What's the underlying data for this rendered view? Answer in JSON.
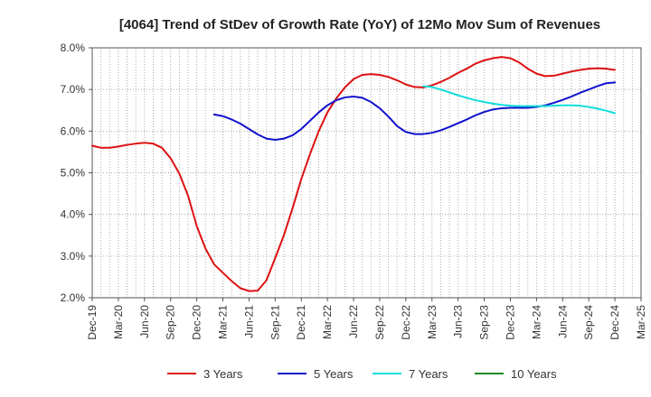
{
  "chart_data": {
    "type": "line",
    "title": "[4064]  Trend of StDev of Growth Rate (YoY) of 12Mo Mov Sum of Revenues",
    "xlabel": "",
    "ylabel": "",
    "ylim": [
      2.0,
      8.0
    ],
    "y_ticks": [
      2.0,
      3.0,
      4.0,
      5.0,
      6.0,
      7.0,
      8.0
    ],
    "y_tick_labels": [
      "2.0%",
      "3.0%",
      "4.0%",
      "5.0%",
      "6.0%",
      "7.0%",
      "8.0%"
    ],
    "x_range_months": [
      0,
      63
    ],
    "x_ticks": [
      0,
      3,
      6,
      9,
      12,
      15,
      18,
      21,
      24,
      27,
      30,
      33,
      36,
      39,
      42,
      45,
      48,
      51,
      54,
      57,
      60,
      63
    ],
    "x_tick_labels": [
      "Dec-19",
      "Mar-20",
      "Jun-20",
      "Sep-20",
      "Dec-20",
      "Mar-21",
      "Jun-21",
      "Sep-21",
      "Dec-21",
      "Mar-22",
      "Jun-22",
      "Sep-22",
      "Dec-22",
      "Mar-23",
      "Jun-23",
      "Sep-23",
      "Dec-23",
      "Mar-24",
      "Jun-24",
      "Sep-24",
      "Dec-24",
      "Mar-25"
    ],
    "grid": true,
    "legend_position": "bottom",
    "series": [
      {
        "name": "3 Years",
        "color": "#dd1111",
        "x": [
          0,
          1,
          2,
          3,
          4,
          5,
          6,
          7,
          8,
          9,
          10,
          11,
          12,
          13,
          14,
          15,
          16,
          17,
          18,
          19,
          20,
          21,
          22,
          23,
          24,
          25,
          26,
          27,
          28,
          29,
          30,
          31,
          32,
          33,
          34,
          35,
          36,
          37,
          38,
          39,
          40,
          41,
          42,
          43,
          44,
          45,
          46,
          47,
          48,
          49,
          50,
          51,
          52,
          53,
          54,
          55,
          56,
          57,
          58,
          59,
          60
        ],
        "values": [
          5.65,
          5.6,
          5.6,
          5.63,
          5.67,
          5.7,
          5.72,
          5.7,
          5.6,
          5.35,
          4.98,
          4.45,
          3.72,
          3.18,
          2.8,
          2.6,
          2.4,
          2.23,
          2.16,
          2.17,
          2.42,
          2.95,
          3.5,
          4.15,
          4.85,
          5.45,
          6.0,
          6.45,
          6.78,
          7.05,
          7.25,
          7.35,
          7.37,
          7.35,
          7.3,
          7.22,
          7.12,
          7.06,
          7.05,
          7.1,
          7.18,
          7.28,
          7.4,
          7.5,
          7.62,
          7.7,
          7.75,
          7.78,
          7.75,
          7.65,
          7.5,
          7.38,
          7.32,
          7.33,
          7.38,
          7.43,
          7.47,
          7.5,
          7.51,
          7.5,
          7.47
        ]
      },
      {
        "name": "5 Years",
        "color": "#1111cc",
        "x": [
          14,
          15,
          16,
          17,
          18,
          19,
          20,
          21,
          22,
          23,
          24,
          25,
          26,
          27,
          28,
          29,
          30,
          31,
          32,
          33,
          34,
          35,
          36,
          37,
          38,
          39,
          40,
          41,
          42,
          43,
          44,
          45,
          46,
          47,
          48,
          49,
          50,
          51,
          52,
          53,
          54,
          55,
          56,
          57,
          58,
          59,
          60
        ],
        "values": [
          6.4,
          6.36,
          6.28,
          6.18,
          6.05,
          5.92,
          5.82,
          5.79,
          5.82,
          5.9,
          6.05,
          6.25,
          6.45,
          6.62,
          6.74,
          6.81,
          6.83,
          6.8,
          6.7,
          6.55,
          6.35,
          6.12,
          5.98,
          5.93,
          5.93,
          5.96,
          6.02,
          6.1,
          6.19,
          6.28,
          6.38,
          6.46,
          6.52,
          6.55,
          6.56,
          6.56,
          6.56,
          6.58,
          6.62,
          6.68,
          6.75,
          6.83,
          6.92,
          7.0,
          7.08,
          7.15,
          7.17
        ]
      },
      {
        "name": "7 Years",
        "color": "#11dddd",
        "x": [
          38,
          39,
          40,
          41,
          42,
          43,
          44,
          45,
          46,
          47,
          48,
          49,
          50,
          51,
          52,
          53,
          54,
          55,
          56,
          57,
          58,
          59,
          60
        ],
        "values": [
          7.08,
          7.06,
          7.0,
          6.93,
          6.86,
          6.8,
          6.74,
          6.7,
          6.66,
          6.63,
          6.61,
          6.6,
          6.6,
          6.6,
          6.6,
          6.61,
          6.62,
          6.62,
          6.61,
          6.58,
          6.54,
          6.49,
          6.43
        ]
      },
      {
        "name": "10 Years",
        "color": "#228822",
        "x": [],
        "values": []
      }
    ]
  }
}
